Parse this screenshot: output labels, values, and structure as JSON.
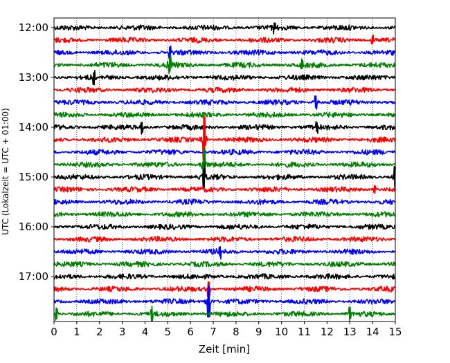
{
  "chart_data": {
    "type": "line",
    "title": "",
    "xlabel": "Zeit  [min]",
    "ylabel": "UTC (Lokalzeit = UTC + 01:00)",
    "xlim": [
      0,
      15
    ],
    "x_ticks": [
      0,
      1,
      2,
      3,
      4,
      5,
      6,
      7,
      8,
      9,
      10,
      11,
      12,
      13,
      14,
      15
    ],
    "x_tick_labels": [
      "0",
      "1",
      "2",
      "3",
      "4",
      "5",
      "6",
      "7",
      "8",
      "9",
      "10",
      "11",
      "12",
      "13",
      "14",
      "15"
    ],
    "y_tick_labels": [
      "12:00",
      "13:00",
      "14:00",
      "15:00",
      "16:00",
      "17:00"
    ],
    "grid": "vertical dotted",
    "line_colors": [
      "#000000",
      "#ff0000",
      "#0000ff",
      "#008000"
    ],
    "trace_start_times": [
      "12:00",
      "12:15",
      "12:30",
      "12:45",
      "13:00",
      "13:15",
      "13:30",
      "13:45",
      "14:00",
      "14:15",
      "14:30",
      "14:45",
      "15:00",
      "15:15",
      "15:30",
      "15:45",
      "16:00",
      "16:15",
      "16:30",
      "16:45",
      "17:00",
      "17:15",
      "17:30",
      "17:45"
    ],
    "events": [
      {
        "trace": "12:00",
        "minute": 9.7,
        "amp": 0.6
      },
      {
        "trace": "12:15",
        "minute": 14.0,
        "amp": 0.7
      },
      {
        "trace": "12:30",
        "minute": 5.1,
        "amp": 0.8
      },
      {
        "trace": "12:45",
        "minute": 5.1,
        "amp": 1.3
      },
      {
        "trace": "12:45",
        "minute": 10.9,
        "amp": 0.7
      },
      {
        "trace": "13:00",
        "minute": 1.75,
        "amp": 1.0
      },
      {
        "trace": "13:30",
        "minute": 11.5,
        "amp": 1.0
      },
      {
        "trace": "14:00",
        "minute": 3.85,
        "amp": 0.9
      },
      {
        "trace": "14:00",
        "minute": 11.55,
        "amp": 0.8
      },
      {
        "trace": "14:15",
        "minute": 6.6,
        "amp": 3.8
      },
      {
        "trace": "14:45",
        "minute": 6.6,
        "amp": 2.5
      },
      {
        "trace": "15:00",
        "minute": 15.0,
        "amp": 1.5
      },
      {
        "trace": "15:00",
        "minute": 6.6,
        "amp": 1.7
      },
      {
        "trace": "15:15",
        "minute": 14.1,
        "amp": 0.6
      },
      {
        "trace": "16:30",
        "minute": 7.3,
        "amp": 0.8
      },
      {
        "trace": "17:15",
        "minute": 6.8,
        "amp": 1.2
      },
      {
        "trace": "17:30",
        "minute": 6.8,
        "amp": 2.5
      },
      {
        "trace": "17:45",
        "minute": 4.3,
        "amp": 1.0
      },
      {
        "trace": "17:45",
        "minute": 13.0,
        "amp": 1.0
      },
      {
        "trace": "17:45",
        "minute": 0.1,
        "amp": 0.9
      }
    ]
  }
}
